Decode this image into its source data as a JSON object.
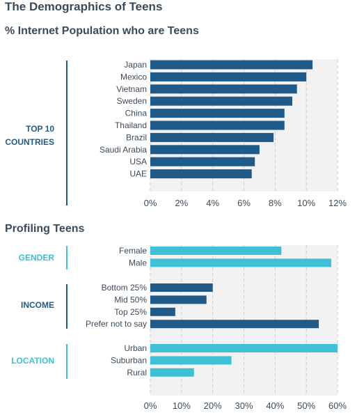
{
  "title": "The Demographics of Teens",
  "colors": {
    "dark_bar": "#1f5a88",
    "light_bar": "#3ec1d6",
    "panel_bg": "#f2f2f2",
    "grid": "#cccccc",
    "text": "#3b4a5a"
  },
  "chart_data": [
    {
      "type": "bar",
      "orientation": "horizontal",
      "title": "% Internet Population who are Teens",
      "group_label_lines": [
        "TOP 10",
        "COUNTRIES"
      ],
      "categories": [
        "Japan",
        "Mexico",
        "Vietnam",
        "Sweden",
        "China",
        "Thailand",
        "Brazil",
        "Saudi Arabia",
        "USA",
        "UAE"
      ],
      "values": [
        10.4,
        10.0,
        9.4,
        9.1,
        8.6,
        8.6,
        7.9,
        7.0,
        6.7,
        6.5
      ],
      "xlim": [
        0,
        12
      ],
      "ticks": [
        "0%",
        "2%",
        "4%",
        "6%",
        "8%",
        "10%",
        "12%"
      ],
      "grid": true
    },
    {
      "type": "bar",
      "orientation": "horizontal",
      "title": "Profiling Teens",
      "xlim": [
        0,
        60
      ],
      "ticks": [
        "0%",
        "10%",
        "20%",
        "30%",
        "40%",
        "50%",
        "60%"
      ],
      "grid": true,
      "groups": [
        {
          "label": "GENDER",
          "color": "#3ec1d6",
          "categories": [
            "Female",
            "Male"
          ],
          "values": [
            42,
            58
          ]
        },
        {
          "label": "INCOME",
          "color": "#1f5a88",
          "categories": [
            "Bottom 25%",
            "Mid 50%",
            "Top 25%",
            "Prefer not to say"
          ],
          "values": [
            20,
            18,
            8,
            54
          ]
        },
        {
          "label": "LOCATION",
          "color": "#3ec1d6",
          "categories": [
            "Urban",
            "Suburban",
            "Rural"
          ],
          "values": [
            60,
            26,
            14
          ]
        }
      ]
    }
  ]
}
